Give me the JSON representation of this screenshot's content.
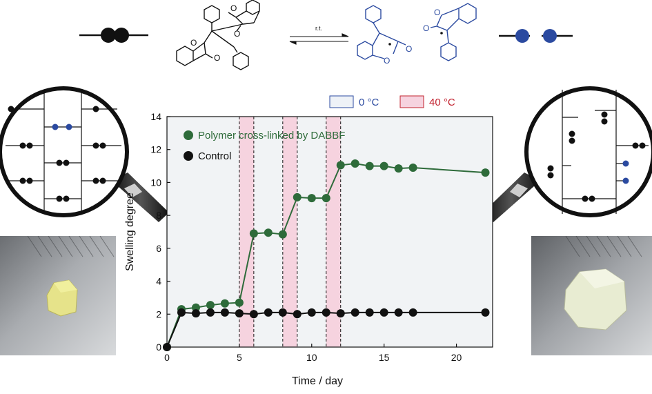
{
  "colors": {
    "green": "#2e6b3a",
    "black": "#111111",
    "blue": "#2b4aa0",
    "pink_band": "#f6d3df",
    "panel_bg": "#f1f3f5",
    "red_label": "#c2212e"
  },
  "scheme": {
    "arrow_label": "r.t."
  },
  "legend_top": {
    "cold": "0 °C",
    "hot": "40 °C"
  },
  "chart_data": {
    "type": "line",
    "title": "",
    "xlabel": "Time / day",
    "ylabel": "Swelling degree",
    "xlim": [
      0,
      22.5
    ],
    "ylim": [
      0,
      14
    ],
    "xticks": [
      0,
      5,
      10,
      15,
      20
    ],
    "yticks": [
      0,
      2,
      4,
      6,
      8,
      10,
      12,
      14
    ],
    "hot_periods": [
      [
        5,
        6
      ],
      [
        8,
        9
      ],
      [
        11,
        12
      ]
    ],
    "legend_placement": "top-left",
    "series": [
      {
        "name": "Polymer cross-linked by DABBF",
        "color": "#2e6b3a",
        "points": [
          [
            0,
            0
          ],
          [
            1,
            2.3
          ],
          [
            2,
            2.4
          ],
          [
            3,
            2.55
          ],
          [
            4,
            2.65
          ],
          [
            5,
            2.7
          ],
          [
            6,
            6.9
          ],
          [
            7,
            6.95
          ],
          [
            8,
            6.85
          ],
          [
            9,
            9.1
          ],
          [
            10,
            9.05
          ],
          [
            11,
            9.05
          ],
          [
            12,
            11.05
          ],
          [
            13,
            11.15
          ],
          [
            14,
            11.0
          ],
          [
            15,
            11.0
          ],
          [
            16,
            10.85
          ],
          [
            17,
            10.9
          ],
          [
            22,
            10.6
          ]
        ]
      },
      {
        "name": "Control",
        "color": "#111111",
        "points": [
          [
            0,
            0
          ],
          [
            1,
            2.1
          ],
          [
            2,
            2.05
          ],
          [
            3,
            2.1
          ],
          [
            4,
            2.1
          ],
          [
            5,
            2.05
          ],
          [
            6,
            2.0
          ],
          [
            7,
            2.1
          ],
          [
            8,
            2.1
          ],
          [
            9,
            2.0
          ],
          [
            10,
            2.1
          ],
          [
            11,
            2.1
          ],
          [
            12,
            2.05
          ],
          [
            13,
            2.1
          ],
          [
            14,
            2.1
          ],
          [
            15,
            2.1
          ],
          [
            16,
            2.1
          ],
          [
            17,
            2.1
          ],
          [
            22,
            2.1
          ]
        ]
      }
    ]
  }
}
